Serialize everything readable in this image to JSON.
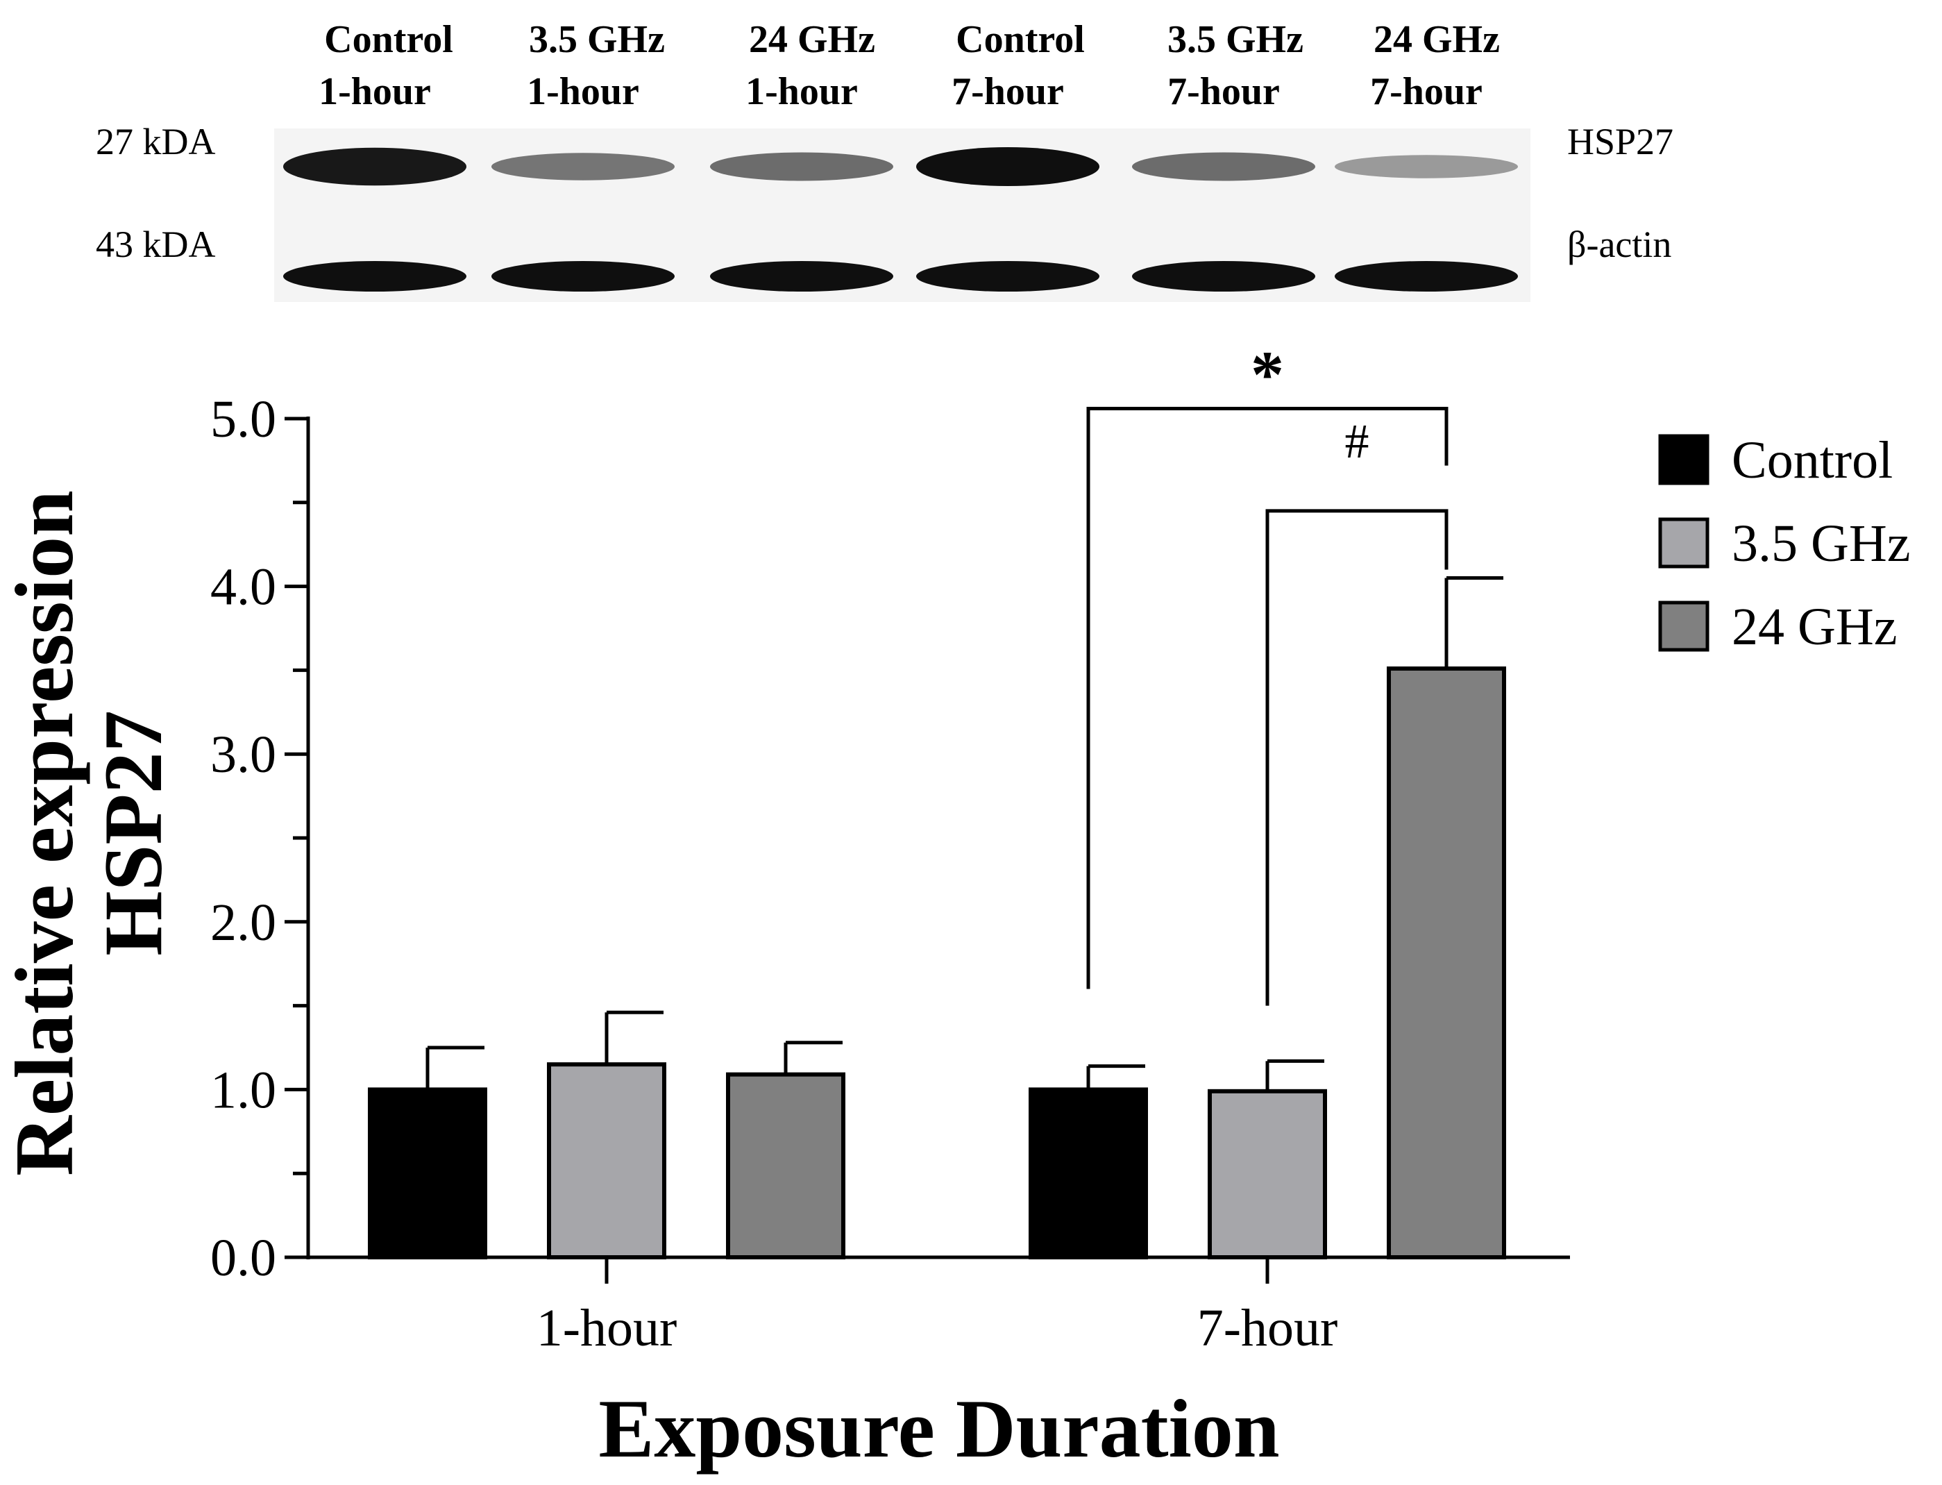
{
  "blot": {
    "lanes": [
      {
        "line1": "Control",
        "line2": "1-hour"
      },
      {
        "line1": "3.5 GHz",
        "line2": "1-hour"
      },
      {
        "line1": "24 GHz",
        "line2": "1-hour"
      },
      {
        "line1": "Control",
        "line2": "7-hour"
      },
      {
        "line1": "3.5 GHz",
        "line2": "7-hour"
      },
      {
        "line1": "24 GHz",
        "line2": "7-hour"
      }
    ],
    "rows": [
      {
        "marker": "27 kDA",
        "protein": "HSP27",
        "intensity": [
          0.95,
          0.45,
          0.5,
          1.0,
          0.5,
          0.25
        ]
      },
      {
        "marker": "43 kDA",
        "protein": "β-actin",
        "intensity": [
          1.0,
          1.0,
          1.0,
          1.0,
          1.0,
          1.0
        ]
      }
    ]
  },
  "chart_data": {
    "type": "bar",
    "categories": [
      "1-hour",
      "7-hour"
    ],
    "series": [
      {
        "name": "Control",
        "color": "#000000",
        "values": [
          1.0,
          1.0
        ],
        "errors": [
          0.25,
          0.14
        ]
      },
      {
        "name": "3.5 GHz",
        "color": "#a6a6aa",
        "values": [
          1.15,
          0.99
        ],
        "errors": [
          0.31,
          0.18
        ]
      },
      {
        "name": "24 GHz",
        "color": "#808080",
        "values": [
          1.09,
          3.51
        ],
        "errors": [
          0.19,
          0.54
        ]
      }
    ],
    "ylabel_line1": "Relative expression",
    "ylabel_line2": "HSP27",
    "xlabel": "Exposure  Duration",
    "ylim": [
      0,
      5
    ],
    "yticks": [
      "0.0",
      "1.0",
      "2.0",
      "3.0",
      "4.0",
      "5.0"
    ],
    "legend_position": "top-right",
    "annotations": [
      {
        "symbol": "*",
        "category": "7-hour",
        "from_series": "Control",
        "to_series": "24 GHz"
      },
      {
        "symbol": "#",
        "category": "7-hour",
        "from_series": "3.5 GHz",
        "to_series": "24 GHz"
      }
    ]
  }
}
